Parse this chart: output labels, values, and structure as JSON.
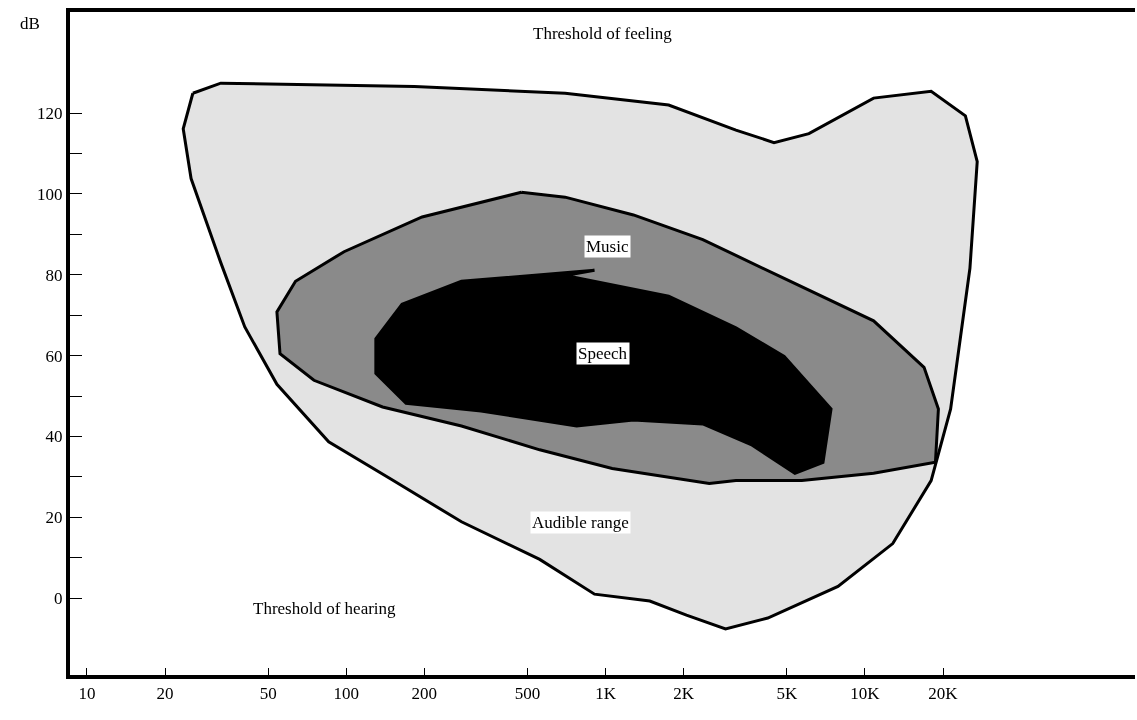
{
  "chart_data": {
    "type": "area",
    "ylabel": "dB",
    "xlim": [
      8.6,
      110000
    ],
    "ylim": [
      -19,
      145
    ],
    "log": "x",
    "legend": false,
    "xticks": [
      10,
      20,
      50,
      100,
      200,
      500,
      {
        "value": 1000,
        "label": "1K"
      },
      {
        "value": 2000,
        "label": "2K"
      },
      {
        "value": 5000,
        "label": "5K"
      },
      {
        "value": 10000,
        "label": "10K"
      },
      {
        "value": 20000,
        "label": "20K"
      }
    ],
    "yticks": [
      0,
      {
        "value": 10,
        "label": null
      },
      20,
      {
        "value": 30,
        "label": null
      },
      40,
      {
        "value": 50,
        "label": null
      },
      60,
      {
        "value": 70,
        "label": null
      },
      80,
      {
        "value": 90,
        "label": null
      },
      100,
      {
        "value": 110,
        "label": null
      },
      120
    ],
    "series": [
      {
        "name": "Audible range",
        "color": "#e3e3e3",
        "x": [
          25.6,
          32.8,
          183,
          698,
          1750,
          3180,
          4460,
          6080,
          10800,
          18000,
          24400,
          27100,
          25400,
          21400,
          18000,
          12800,
          7870,
          4220,
          2900,
          2050,
          1480,
          906,
          557,
          278,
          149,
          85.5,
          54,
          40.6,
          32.8,
          25.2,
          23.5
        ],
        "values": [
          124.9,
          127.4,
          126.6,
          124.9,
          122,
          115.8,
          112.7,
          114.9,
          123.7,
          125.4,
          119.3,
          108,
          81.6,
          46.8,
          29.1,
          13.5,
          2.9,
          -4.9,
          -7.6,
          -4.2,
          -0.7,
          1,
          9.6,
          18.9,
          29.4,
          38.7,
          52.9,
          67.1,
          83,
          103.8,
          116.1
        ]
      },
      {
        "name": "Music",
        "color": "#8a8a8a",
        "x": [
          473,
          698,
          1280,
          2370,
          4880,
          10800,
          16900,
          19200,
          18700,
          10800,
          5710,
          3180,
          2510,
          1060,
          557,
          278,
          138,
          75,
          55.5,
          54,
          63.7,
          98,
          196
        ],
        "values": [
          100.4,
          99.2,
          94.8,
          88.7,
          79.1,
          68.6,
          57.1,
          46.8,
          33.6,
          30.9,
          29.1,
          29.1,
          28.4,
          32.1,
          36.7,
          42.6,
          47.3,
          53.9,
          60.5,
          70.8,
          78.4,
          85.7,
          94.3
        ]
      },
      {
        "name": "Speech",
        "color": "#000000",
        "x": [
          698,
          1750,
          3180,
          4880,
          7400,
          6890,
          5370,
          3640,
          2370,
          1280,
          773,
          331,
          170,
          130,
          130,
          164,
          278,
          906
        ],
        "values": [
          79.8,
          74.7,
          66.9,
          59.8,
          46.8,
          33.6,
          30.9,
          38,
          43.1,
          44.1,
          42.6,
          46.3,
          48.2,
          55.6,
          64.2,
          72.7,
          78.4,
          81.1
        ]
      }
    ],
    "annotations": [
      "Threshold of feeling",
      "Threshold of hearing"
    ]
  }
}
